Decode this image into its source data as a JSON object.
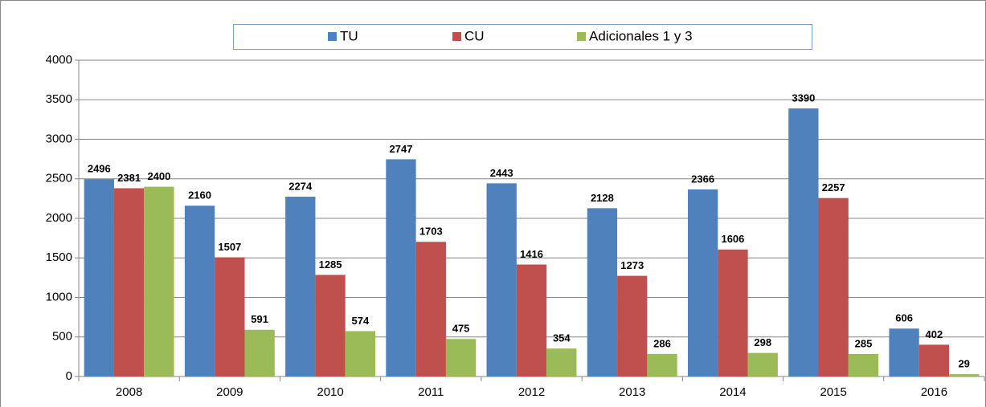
{
  "chart_data": {
    "type": "bar",
    "categories": [
      "2008",
      "2009",
      "2010",
      "2011",
      "2012",
      "2013",
      "2014",
      "2015",
      "2016"
    ],
    "series": [
      {
        "name": "TU",
        "color": "#4f81bd",
        "values": [
          2496,
          2160,
          2274,
          2747,
          2443,
          2128,
          2366,
          3390,
          606
        ]
      },
      {
        "name": "CU",
        "color": "#c0504d",
        "values": [
          2381,
          1507,
          1285,
          1703,
          1416,
          1273,
          1606,
          2257,
          402
        ]
      },
      {
        "name": "Adicionales 1 y 3",
        "color": "#9bbb59",
        "values": [
          2400,
          591,
          574,
          475,
          354,
          286,
          298,
          285,
          29
        ]
      }
    ],
    "ylim": [
      0,
      4000
    ],
    "yticks": [
      0,
      500,
      1000,
      1500,
      2000,
      2500,
      3000,
      3500,
      4000
    ],
    "grid": true,
    "legend": "top"
  }
}
